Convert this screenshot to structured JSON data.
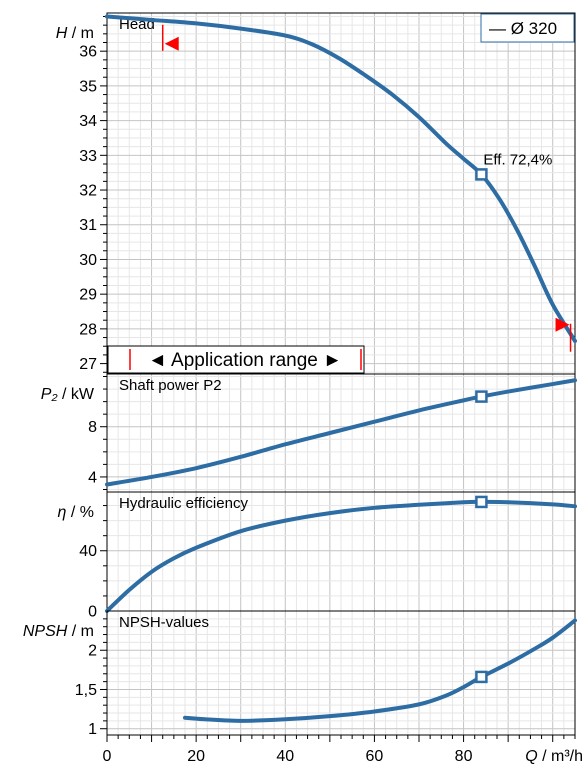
{
  "chart_data": {
    "type": "line",
    "x_axis": {
      "label_var": "Q",
      "label_unit": " / m³/h",
      "range": [
        0,
        105
      ],
      "ticks": [
        0,
        20,
        40,
        60,
        80
      ]
    },
    "legend": {
      "text": "— Ø 320",
      "placement": "top-right",
      "color": "#2e6da4"
    },
    "application_range": {
      "label": "◄ Application range ►",
      "q_min": 12.5,
      "q_max": 105,
      "color": "#ff0000"
    },
    "duty_point": {
      "q": 84,
      "efficiency_label": "Eff.  72,4%"
    },
    "curve_color": "#2e6da4",
    "panels": [
      {
        "id": "head",
        "title": "Head",
        "ylabel_var": "H",
        "ylabel_unit": " / m",
        "ylim": [
          26.7,
          37.1
        ],
        "ticks": [
          27,
          28,
          29,
          30,
          31,
          32,
          33,
          34,
          35,
          36
        ],
        "tick_labels": [
          "27",
          "28",
          "29",
          "30",
          "31",
          "32",
          "33",
          "34",
          "35",
          "36"
        ],
        "series": [
          {
            "x": [
              0,
              10,
              20,
              30,
              40,
              46,
              52,
              58,
              64,
              70,
              76,
              80,
              84,
              88,
              92,
              96,
              100,
              105
            ],
            "y": [
              37.0,
              36.9,
              36.8,
              36.65,
              36.45,
              36.2,
              35.8,
              35.3,
              34.75,
              34.1,
              33.35,
              32.9,
              32.45,
              31.75,
              30.85,
              29.8,
              28.7,
              27.65
            ]
          }
        ]
      },
      {
        "id": "power",
        "title": "Shaft power P2",
        "ylabel_var": "P₂",
        "ylabel_unit": " / kW",
        "ylim": [
          2.8,
          12.2
        ],
        "ticks": [
          4,
          8
        ],
        "tick_labels": [
          "4",
          "8"
        ],
        "series": [
          {
            "x": [
              0,
              10,
              20,
              30,
              40,
              50,
              60,
              70,
              80,
              84,
              90,
              100,
              105
            ],
            "y": [
              3.4,
              4.0,
              4.7,
              5.6,
              6.6,
              7.5,
              8.4,
              9.3,
              10.1,
              10.4,
              10.8,
              11.4,
              11.7
            ]
          }
        ]
      },
      {
        "id": "efficiency",
        "title": "Hydraulic efficiency",
        "ylabel_var": "η",
        "ylabel_unit": " / %",
        "ylim": [
          0,
          79
        ],
        "ticks": [
          0,
          40
        ],
        "tick_labels": [
          "0",
          "40"
        ],
        "series": [
          {
            "x": [
              0,
              5,
              10,
              15,
              20,
              30,
              40,
              50,
              60,
              70,
              80,
              84,
              90,
              100,
              105
            ],
            "y": [
              0,
              14,
              26,
              35,
              42,
              53,
              60,
              65,
              68.5,
              70.5,
              72.2,
              72.4,
              72.2,
              70.8,
              69.5
            ]
          }
        ]
      },
      {
        "id": "npsh",
        "title": "NPSH-values",
        "ylabel_var": "NPSH",
        "ylabel_unit": " / m",
        "ylim": [
          0.92,
          2.5
        ],
        "ticks": [
          1,
          1.5,
          2
        ],
        "tick_labels": [
          "1",
          "1,5",
          "2"
        ],
        "series": [
          {
            "x": [
              17.5,
              22,
              30,
              40,
              50,
              60,
              70,
              76,
              80,
              84,
              90,
              96,
              100,
              105
            ],
            "y": [
              1.14,
              1.12,
              1.1,
              1.12,
              1.16,
              1.22,
              1.31,
              1.42,
              1.53,
              1.66,
              1.83,
              2.02,
              2.16,
              2.38
            ]
          }
        ]
      }
    ]
  }
}
